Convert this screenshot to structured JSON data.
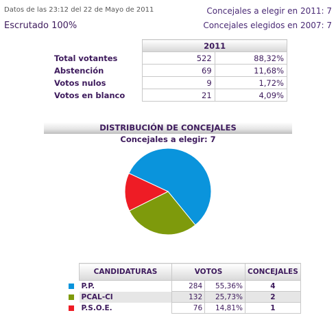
{
  "header": {
    "datos": "Datos de las 23:12  del 22 de Mayo de 2011",
    "escrutado": "Escrutado 100%",
    "concejales_elegir": "Concejales a elegir en 2011: 7",
    "concejales_elegidos": "Concejales elegidos en 2007: 7"
  },
  "votos": {
    "year": "2011",
    "rows": [
      {
        "label": "Total votantes",
        "value": "522",
        "pct": "88,32%"
      },
      {
        "label": "Abstención",
        "value": "69",
        "pct": "11,68%"
      },
      {
        "label": "Votos nulos",
        "value": "9",
        "pct": "1,72%"
      },
      {
        "label": "Votos en blanco",
        "value": "21",
        "pct": "4,09%"
      }
    ]
  },
  "distribucion": {
    "title": "DISTRIBUCIÓN DE CONCEJALES",
    "subtitle": "Concejales a elegir: 7"
  },
  "chart_data": {
    "type": "pie",
    "title": "DISTRIBUCIÓN DE CONCEJALES",
    "subtitle": "Concejales a elegir: 7",
    "categories": [
      "P.P.",
      "PCAL-CI",
      "P.S.O.E."
    ],
    "values": [
      4,
      2,
      1
    ],
    "colors": [
      "#0a94dc",
      "#7e9a0c",
      "#ee1c25"
    ]
  },
  "candidaturas": {
    "headers": {
      "candidaturas": "CANDIDATURAS",
      "votos": "VOTOS",
      "concejales": "CONCEJALES"
    },
    "rows": [
      {
        "name": "P.P.",
        "votos": "284",
        "pct": "55,36%",
        "concejales": "4",
        "color": "#0a94dc"
      },
      {
        "name": "PCAL-CI",
        "votos": "132",
        "pct": "25,73%",
        "concejales": "2",
        "color": "#7e9a0c"
      },
      {
        "name": "P.S.O.E.",
        "votos": "76",
        "pct": "14,81%",
        "concejales": "1",
        "color": "#ee1c25"
      }
    ]
  }
}
